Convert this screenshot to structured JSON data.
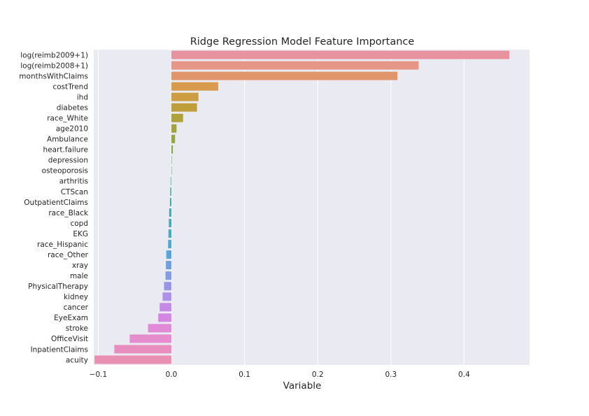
{
  "chart_data": {
    "type": "bar",
    "orientation": "horizontal",
    "title": "Ridge Regression Model Feature Importance",
    "xlabel": "Variable",
    "ylabel": "",
    "xlim": [
      -0.105,
      0.49
    ],
    "xticks": [
      -0.1,
      0.0,
      0.1,
      0.2,
      0.3,
      0.4
    ],
    "xtick_labels": [
      "−0.1",
      "0.0",
      "0.1",
      "0.2",
      "0.3",
      "0.4"
    ],
    "grid": true,
    "background_color": "#eaeaf2",
    "grid_color": "#ffffff",
    "categories": [
      "log(reimb2009+1)",
      "log(reimb2008+1)",
      "monthsWithClaims",
      "costTrend",
      "ihd",
      "diabetes",
      "race_White",
      "age2010",
      "Ambulance",
      "heart.failure",
      "depression",
      "osteoporosis",
      "arthritis",
      "CTScan",
      "OutpatientClaims",
      "race_Black",
      "copd",
      "EKG",
      "race_Hispanic",
      "race_Other",
      "xray",
      "male",
      "PhysicalTherapy",
      "kidney",
      "cancer",
      "EyeExam",
      "stroke",
      "OfficeVisit",
      "InpatientClaims",
      "acuity"
    ],
    "values": [
      0.462,
      0.338,
      0.309,
      0.064,
      0.037,
      0.035,
      0.016,
      0.007,
      0.005,
      0.002,
      0.0005,
      0.0004,
      -0.0008,
      -0.0015,
      -0.002,
      -0.003,
      -0.0035,
      -0.004,
      -0.0045,
      -0.007,
      -0.0075,
      -0.008,
      -0.01,
      -0.012,
      -0.016,
      -0.018,
      -0.032,
      -0.057,
      -0.078,
      -0.105
    ],
    "colors": [
      "#e8919f",
      "#e59686",
      "#e0956a",
      "#d89a4c",
      "#cc9e41",
      "#be9f3c",
      "#b0a23b",
      "#a3a43b",
      "#95a73c",
      "#84a93f",
      "#6fad55",
      "#59b072",
      "#48b288",
      "#42b296",
      "#42b0a2",
      "#43aeac",
      "#45adb6",
      "#48abc0",
      "#4ea9cb",
      "#5aa5d8",
      "#6da0e0",
      "#849be6",
      "#9996e8",
      "#ae91ea",
      "#c38be6",
      "#d487e0",
      "#e08ad8",
      "#e58ccc",
      "#e78ebf",
      "#e98fb1"
    ]
  }
}
